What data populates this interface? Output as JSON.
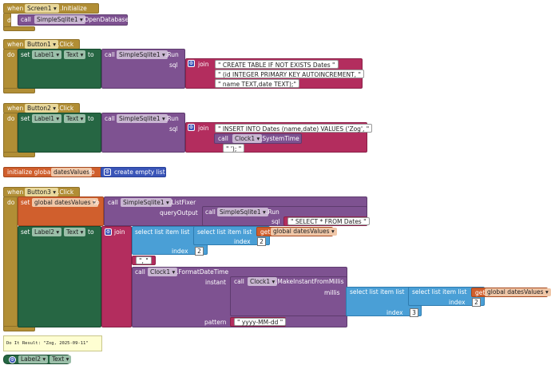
{
  "when_label": "when",
  "do_label": "do",
  "call_label": "call",
  "set_label": "set",
  "to_label": "to",
  "get_label": "get",
  "join_label": "join",
  "dropdown_arrow": "▾",
  "gear_glyph": "⚙",
  "b1": {
    "component": "Screen1",
    "event": ".Initialize",
    "db_component": "SimpleSqlite1",
    "db_method": ".OpenDatabase"
  },
  "b2": {
    "component": "Button1",
    "event": ".Click",
    "target": "Label1",
    "prop": "Text",
    "db_component": "SimpleSqlite1",
    "db_method": ".Run",
    "sql_label": "sql",
    "strings": [
      "CREATE TABLE IF NOT EXISTS Dates ",
      "(id INTEGER PRIMARY KEY AUTOINCREMENT, ",
      "name TEXT,date TEXT);"
    ]
  },
  "b3": {
    "component": "Button2",
    "event": ".Click",
    "target": "Label1",
    "prop": "Text",
    "db_component": "SimpleSqlite1",
    "db_method": ".Run",
    "sql_label": "sql",
    "string1": "INSERT INTO Dates (name,date) VALUES ('Zog',",
    "clock_component": "Clock1",
    "clock_method": ".SystemTime",
    "string2": "');"
  },
  "b4": {
    "label": "initialize global",
    "var": "datesValues",
    "to_label": "to",
    "value": "create empty list"
  },
  "b5": {
    "component": "Button3",
    "event": ".Click",
    "global_var": "global datesValues",
    "db_component": "SimpleSqlite1",
    "listfixer": ".ListFixer",
    "query_output": "queryOutput",
    "run": ".Run",
    "sql_label": "sql",
    "select_sql": "SELECT * FROM Dates",
    "target": "Label2",
    "prop": "Text",
    "select_list_item": "select list item  list",
    "index_label": "index",
    "index_a": "2",
    "index_b": "2",
    "sep": ", ",
    "clock_component": "Clock1",
    "format_method": ".FormatDateTime",
    "instant_label": "instant",
    "make_method": ".MakeInstantFromMillis",
    "millis_label": "millis",
    "index_c": "2",
    "index_d": "3",
    "pattern_label": "pattern",
    "pattern": "yyyy-MM-dd"
  },
  "do_it_result": "Do It Result: \"Zog, 2025-09-11\"",
  "b6": {
    "component": "Label2",
    "prop": "Text"
  }
}
